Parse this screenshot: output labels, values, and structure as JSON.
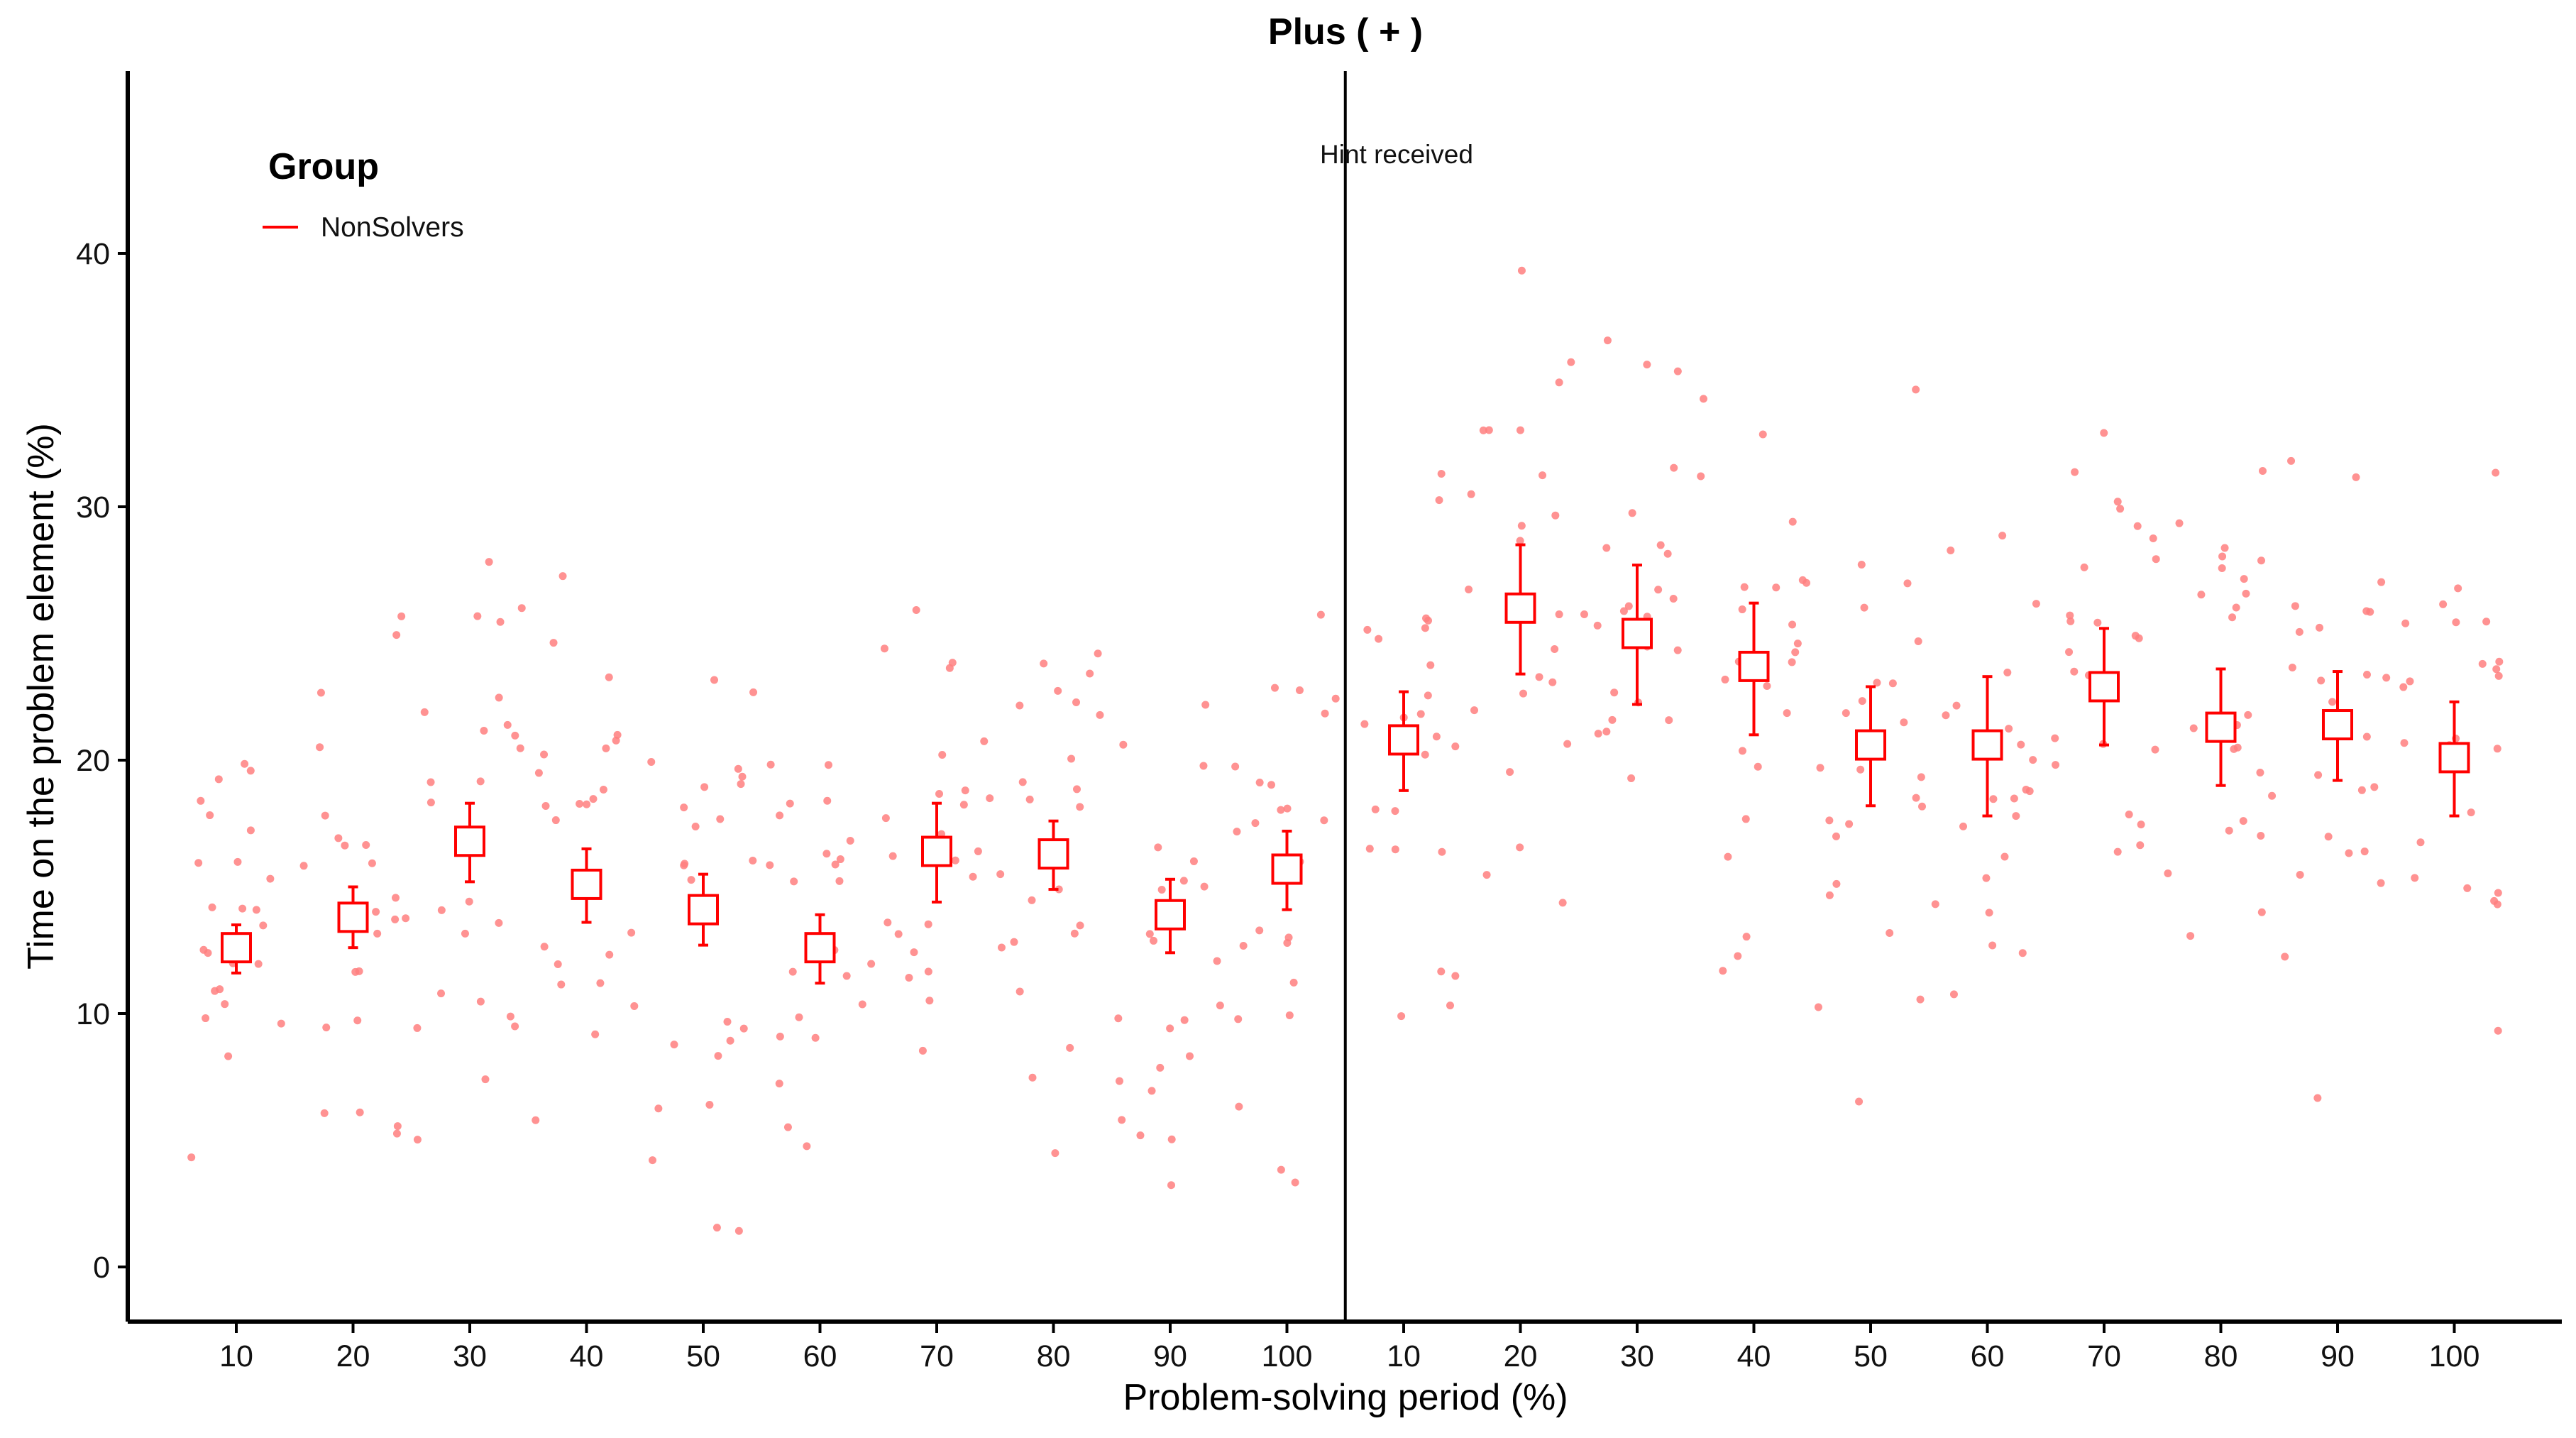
{
  "chart_data": {
    "type": "scatter",
    "title": "Plus ( + )",
    "xlabel": "Problem-solving period (%)",
    "ylabel": "Time on the problem element (%)",
    "x_ticks": [
      "10",
      "20",
      "30",
      "40",
      "50",
      "60",
      "70",
      "80",
      "90",
      "100",
      "10",
      "20",
      "30",
      "40",
      "50",
      "60",
      "70",
      "80",
      "90",
      "100"
    ],
    "y_ticks": [
      0,
      10,
      20,
      30,
      40
    ],
    "ylim": [
      -2.2,
      47.5
    ],
    "grid": false,
    "legend": {
      "title": "Group",
      "entries": [
        {
          "label": "NonSolvers",
          "color": "#ff0000"
        }
      ],
      "placement": "top-left"
    },
    "annotation": {
      "text": "Hint received",
      "after_category_index": 9
    },
    "colors": {
      "series": "#ff0000",
      "points": "#ff7f7f",
      "axis": "#000000"
    },
    "series": [
      {
        "name": "NonSolvers",
        "categories": [
          "10",
          "20",
          "30",
          "40",
          "50",
          "60",
          "70",
          "80",
          "90",
          "100",
          "10",
          "20",
          "30",
          "40",
          "50",
          "60",
          "70",
          "80",
          "90",
          "100"
        ],
        "means": [
          12.6,
          13.8,
          16.8,
          15.1,
          14.1,
          12.6,
          16.4,
          16.3,
          13.9,
          15.7,
          20.8,
          26.0,
          25.0,
          23.7,
          20.6,
          20.6,
          22.9,
          21.3,
          21.4,
          20.1
        ],
        "ci_low": [
          11.6,
          12.6,
          15.2,
          13.6,
          12.7,
          11.2,
          14.4,
          14.9,
          12.4,
          14.1,
          18.8,
          23.4,
          22.2,
          21.0,
          18.2,
          17.8,
          20.6,
          19.0,
          19.2,
          17.8
        ],
        "ci_high": [
          13.5,
          15.0,
          18.3,
          16.5,
          15.5,
          13.9,
          18.3,
          17.6,
          15.3,
          17.2,
          22.7,
          28.5,
          27.7,
          26.2,
          22.9,
          23.3,
          25.2,
          23.6,
          23.5,
          22.3
        ]
      }
    ]
  }
}
